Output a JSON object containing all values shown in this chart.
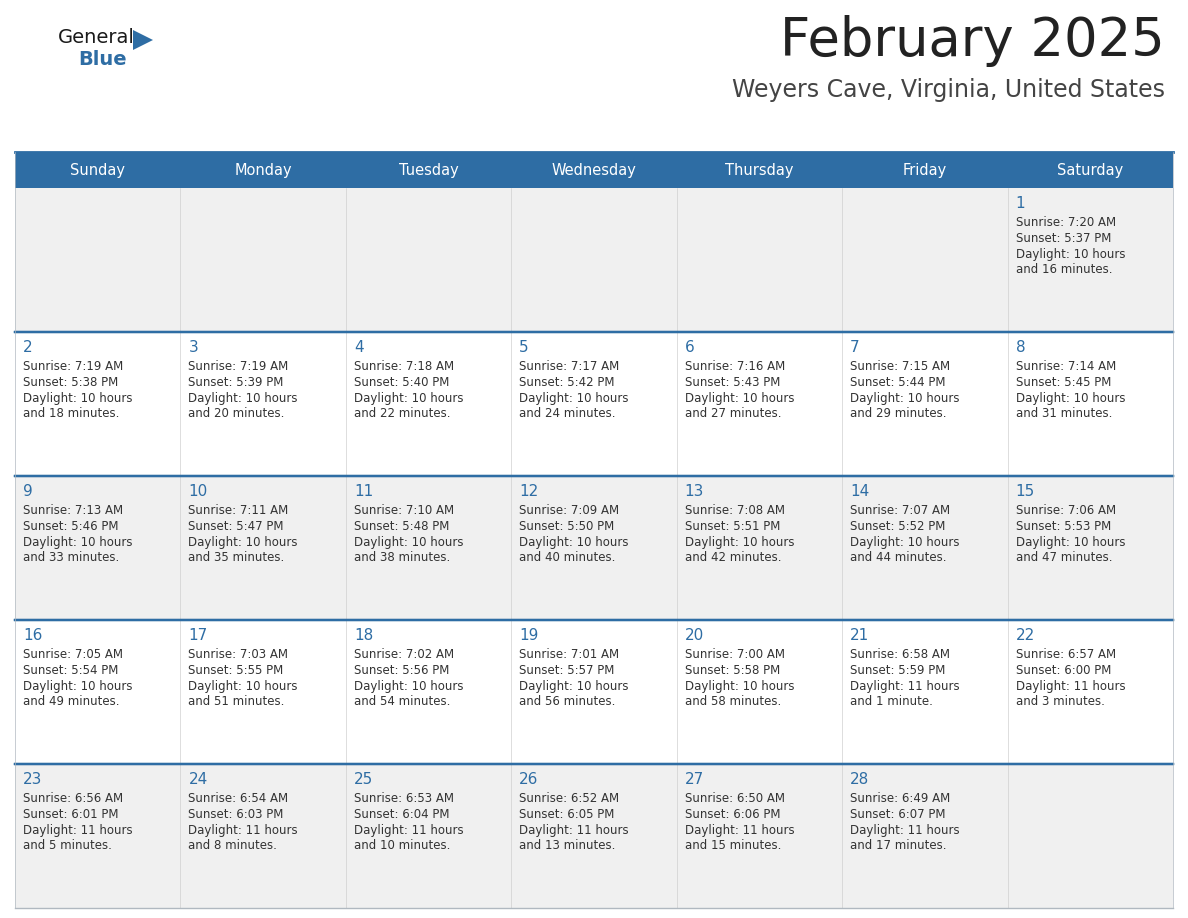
{
  "title": "February 2025",
  "subtitle": "Weyers Cave, Virginia, United States",
  "header_bg": "#2E6DA4",
  "header_text_color": "#FFFFFF",
  "cell_bg_light": "#F0F0F0",
  "cell_bg_white": "#FFFFFF",
  "cell_border_color": "#B0B8C0",
  "day_number_color": "#2E6DA4",
  "cell_text_color": "#333333",
  "title_color": "#222222",
  "subtitle_color": "#444444",
  "days_of_week": [
    "Sunday",
    "Monday",
    "Tuesday",
    "Wednesday",
    "Thursday",
    "Friday",
    "Saturday"
  ],
  "calendar": [
    [
      {
        "day": "",
        "sunrise": "",
        "sunset": "",
        "daylight": ""
      },
      {
        "day": "",
        "sunrise": "",
        "sunset": "",
        "daylight": ""
      },
      {
        "day": "",
        "sunrise": "",
        "sunset": "",
        "daylight": ""
      },
      {
        "day": "",
        "sunrise": "",
        "sunset": "",
        "daylight": ""
      },
      {
        "day": "",
        "sunrise": "",
        "sunset": "",
        "daylight": ""
      },
      {
        "day": "",
        "sunrise": "",
        "sunset": "",
        "daylight": ""
      },
      {
        "day": "1",
        "sunrise": "7:20 AM",
        "sunset": "5:37 PM",
        "daylight": "10 hours\nand 16 minutes."
      }
    ],
    [
      {
        "day": "2",
        "sunrise": "7:19 AM",
        "sunset": "5:38 PM",
        "daylight": "10 hours\nand 18 minutes."
      },
      {
        "day": "3",
        "sunrise": "7:19 AM",
        "sunset": "5:39 PM",
        "daylight": "10 hours\nand 20 minutes."
      },
      {
        "day": "4",
        "sunrise": "7:18 AM",
        "sunset": "5:40 PM",
        "daylight": "10 hours\nand 22 minutes."
      },
      {
        "day": "5",
        "sunrise": "7:17 AM",
        "sunset": "5:42 PM",
        "daylight": "10 hours\nand 24 minutes."
      },
      {
        "day": "6",
        "sunrise": "7:16 AM",
        "sunset": "5:43 PM",
        "daylight": "10 hours\nand 27 minutes."
      },
      {
        "day": "7",
        "sunrise": "7:15 AM",
        "sunset": "5:44 PM",
        "daylight": "10 hours\nand 29 minutes."
      },
      {
        "day": "8",
        "sunrise": "7:14 AM",
        "sunset": "5:45 PM",
        "daylight": "10 hours\nand 31 minutes."
      }
    ],
    [
      {
        "day": "9",
        "sunrise": "7:13 AM",
        "sunset": "5:46 PM",
        "daylight": "10 hours\nand 33 minutes."
      },
      {
        "day": "10",
        "sunrise": "7:11 AM",
        "sunset": "5:47 PM",
        "daylight": "10 hours\nand 35 minutes."
      },
      {
        "day": "11",
        "sunrise": "7:10 AM",
        "sunset": "5:48 PM",
        "daylight": "10 hours\nand 38 minutes."
      },
      {
        "day": "12",
        "sunrise": "7:09 AM",
        "sunset": "5:50 PM",
        "daylight": "10 hours\nand 40 minutes."
      },
      {
        "day": "13",
        "sunrise": "7:08 AM",
        "sunset": "5:51 PM",
        "daylight": "10 hours\nand 42 minutes."
      },
      {
        "day": "14",
        "sunrise": "7:07 AM",
        "sunset": "5:52 PM",
        "daylight": "10 hours\nand 44 minutes."
      },
      {
        "day": "15",
        "sunrise": "7:06 AM",
        "sunset": "5:53 PM",
        "daylight": "10 hours\nand 47 minutes."
      }
    ],
    [
      {
        "day": "16",
        "sunrise": "7:05 AM",
        "sunset": "5:54 PM",
        "daylight": "10 hours\nand 49 minutes."
      },
      {
        "day": "17",
        "sunrise": "7:03 AM",
        "sunset": "5:55 PM",
        "daylight": "10 hours\nand 51 minutes."
      },
      {
        "day": "18",
        "sunrise": "7:02 AM",
        "sunset": "5:56 PM",
        "daylight": "10 hours\nand 54 minutes."
      },
      {
        "day": "19",
        "sunrise": "7:01 AM",
        "sunset": "5:57 PM",
        "daylight": "10 hours\nand 56 minutes."
      },
      {
        "day": "20",
        "sunrise": "7:00 AM",
        "sunset": "5:58 PM",
        "daylight": "10 hours\nand 58 minutes."
      },
      {
        "day": "21",
        "sunrise": "6:58 AM",
        "sunset": "5:59 PM",
        "daylight": "11 hours\nand 1 minute."
      },
      {
        "day": "22",
        "sunrise": "6:57 AM",
        "sunset": "6:00 PM",
        "daylight": "11 hours\nand 3 minutes."
      }
    ],
    [
      {
        "day": "23",
        "sunrise": "6:56 AM",
        "sunset": "6:01 PM",
        "daylight": "11 hours\nand 5 minutes."
      },
      {
        "day": "24",
        "sunrise": "6:54 AM",
        "sunset": "6:03 PM",
        "daylight": "11 hours\nand 8 minutes."
      },
      {
        "day": "25",
        "sunrise": "6:53 AM",
        "sunset": "6:04 PM",
        "daylight": "11 hours\nand 10 minutes."
      },
      {
        "day": "26",
        "sunrise": "6:52 AM",
        "sunset": "6:05 PM",
        "daylight": "11 hours\nand 13 minutes."
      },
      {
        "day": "27",
        "sunrise": "6:50 AM",
        "sunset": "6:06 PM",
        "daylight": "11 hours\nand 15 minutes."
      },
      {
        "day": "28",
        "sunrise": "6:49 AM",
        "sunset": "6:07 PM",
        "daylight": "11 hours\nand 17 minutes."
      },
      {
        "day": "",
        "sunrise": "",
        "sunset": "",
        "daylight": ""
      }
    ]
  ],
  "logo_color_general": "#1a1a1a",
  "logo_color_blue": "#2E6DA4"
}
